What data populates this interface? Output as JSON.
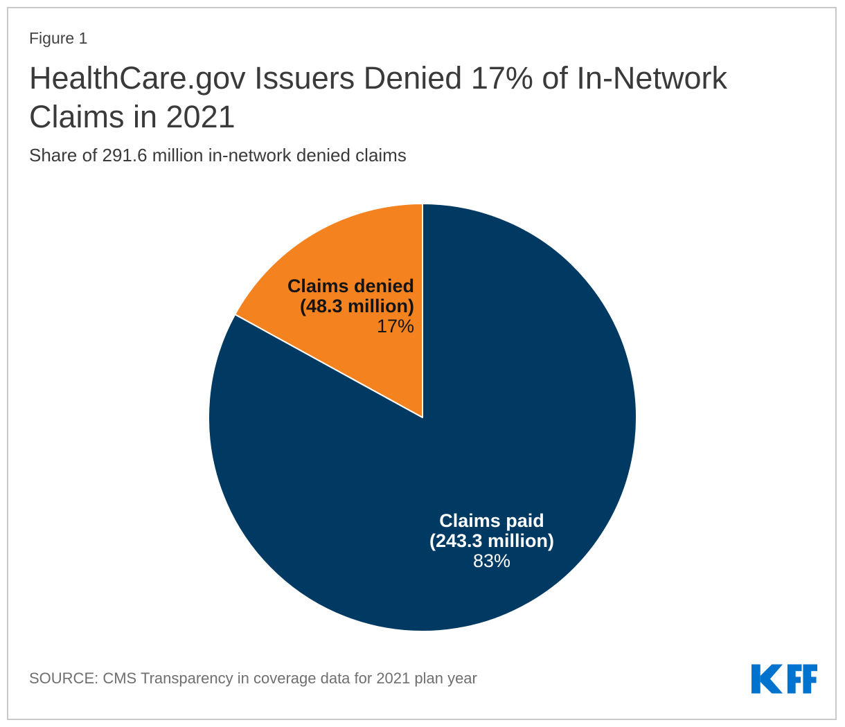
{
  "figure_label": "Figure 1",
  "title": "HealthCare.gov Issuers Denied 17% of In-Network Claims in 2021",
  "subtitle": "Share of 291.6 million in-network denied claims",
  "source": "SOURCE: CMS Transparency in coverage data for 2021 plan year",
  "logo_text": "KFF",
  "colors": {
    "denied_orange": "#F4821F",
    "paid_navy": "#003A63",
    "kff_blue": "#0073CF",
    "border_gray": "#C9C9C9",
    "text_dark": "#3A3A3A",
    "source_gray": "#6F6F6F"
  },
  "chart_data": {
    "type": "pie",
    "title": "Share of 291.6 million in-network denied claims",
    "total_claims_millions": 291.6,
    "start_angle": "12 o'clock",
    "direction": "counterclockwise",
    "legend_position": "labels inside slices",
    "slices": [
      {
        "label": "Claims denied",
        "sublabel": "(48.3 million)",
        "percent": 17,
        "percent_label": "17%",
        "value_millions": 48.3,
        "color": "#F4821F",
        "label_color": "#141414"
      },
      {
        "label": "Claims paid",
        "sublabel": "(243.3 million)",
        "percent": 83,
        "percent_label": "83%",
        "value_millions": 243.3,
        "color": "#003A63",
        "label_color": "#FFFFFF"
      }
    ]
  }
}
